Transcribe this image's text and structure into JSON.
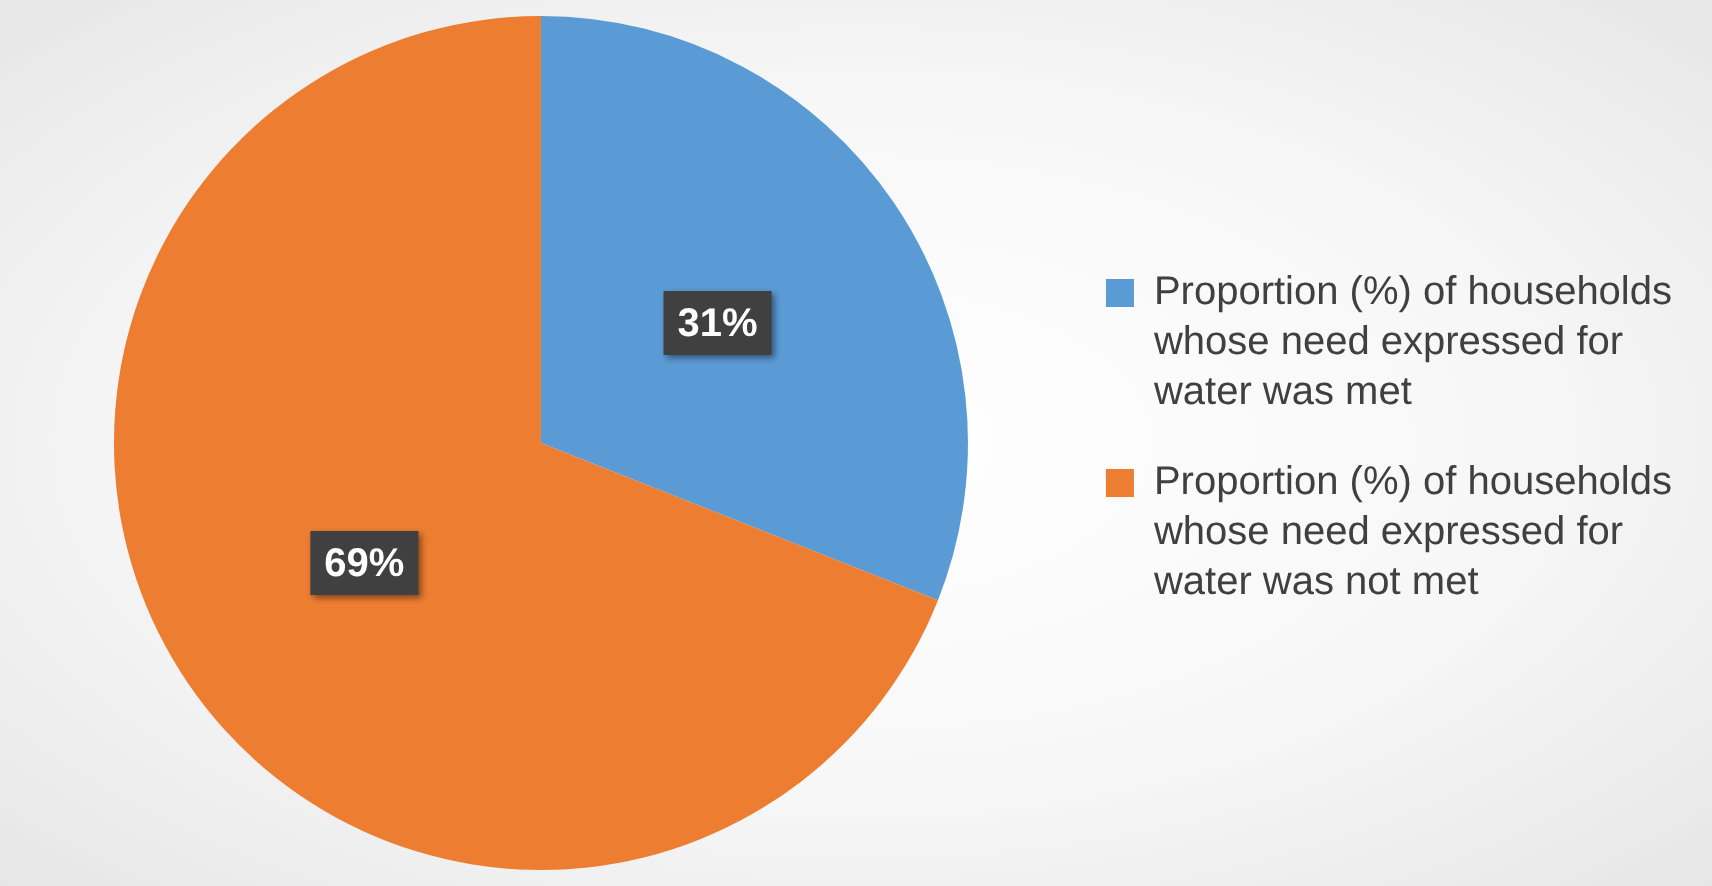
{
  "chart_data": {
    "type": "pie",
    "categories": [
      "Proportion (%) of households whose need expressed for water was met",
      "Proportion (%) of households whose need expressed for water was not met"
    ],
    "values": [
      31,
      69
    ],
    "colors": [
      "#5b9bd5",
      "#ed7d31"
    ],
    "value_labels": [
      "31%",
      "69%"
    ],
    "legend": "right"
  }
}
